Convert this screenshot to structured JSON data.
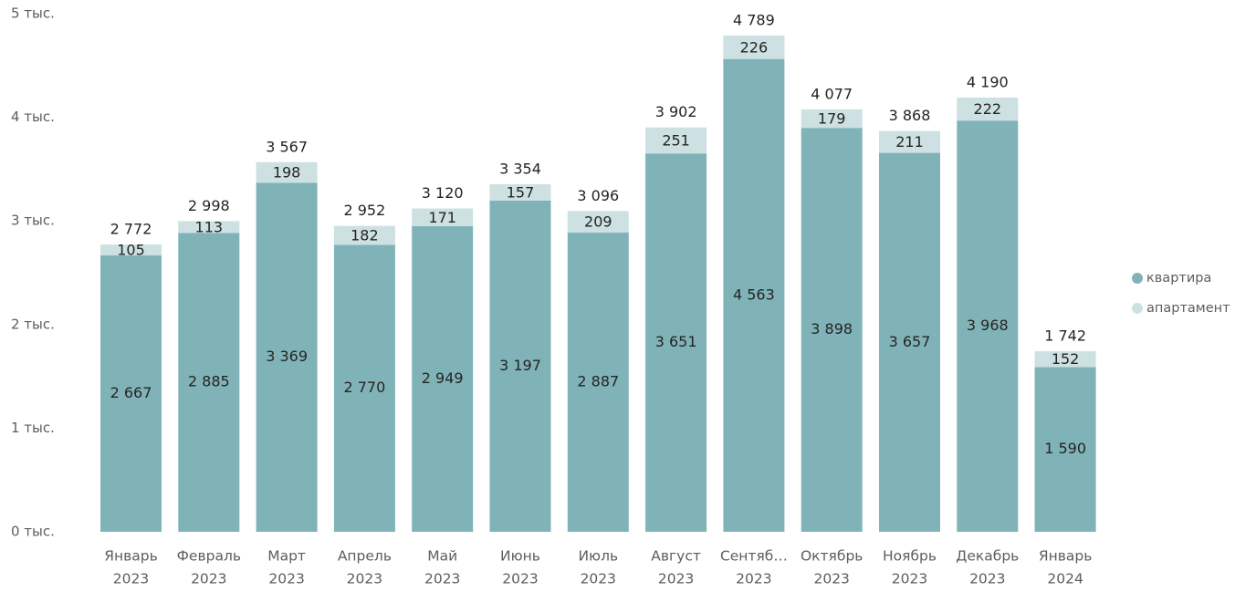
{
  "chart_data": {
    "type": "bar",
    "stacked": true,
    "categories": [
      [
        "Январь",
        "2023"
      ],
      [
        "Февраль",
        "2023"
      ],
      [
        "Март",
        "2023"
      ],
      [
        "Апрель",
        "2023"
      ],
      [
        "Май",
        "2023"
      ],
      [
        "Июнь",
        "2023"
      ],
      [
        "Июль",
        "2023"
      ],
      [
        "Август",
        "2023"
      ],
      [
        "Сентяб…",
        "2023"
      ],
      [
        "Октябрь",
        "2023"
      ],
      [
        "Ноябрь",
        "2023"
      ],
      [
        "Декабрь",
        "2023"
      ],
      [
        "Январь",
        "2024"
      ]
    ],
    "series": [
      {
        "name": "квартира",
        "color": "#80b3b8",
        "values": [
          2667,
          2885,
          3369,
          2770,
          2949,
          3197,
          2887,
          3651,
          4563,
          3898,
          3657,
          3968,
          1590
        ],
        "labels": [
          "2 667",
          "2 885",
          "3 369",
          "2 770",
          "2 949",
          "3 197",
          "2 887",
          "3 651",
          "4 563",
          "3 898",
          "3 657",
          "3 968",
          "1 590"
        ]
      },
      {
        "name": "апартамент",
        "color": "#cde0e2",
        "values": [
          105,
          113,
          198,
          182,
          171,
          157,
          209,
          251,
          226,
          179,
          211,
          222,
          152
        ],
        "labels": [
          "105",
          "113",
          "198",
          "182",
          "171",
          "157",
          "209",
          "251",
          "226",
          "179",
          "211",
          "222",
          "152"
        ]
      }
    ],
    "totals": [
      2772,
      2998,
      3567,
      2952,
      3120,
      3354,
      3096,
      3902,
      4789,
      4077,
      3868,
      4190,
      1742
    ],
    "total_labels": [
      "2 772",
      "2 998",
      "3 567",
      "2 952",
      "3 120",
      "3 354",
      "3 096",
      "3 902",
      "4 789",
      "4 077",
      "3 868",
      "4 190",
      "1 742"
    ],
    "yticks": [
      0,
      1000,
      2000,
      3000,
      4000,
      5000
    ],
    "ytick_labels": [
      "0 тыс.",
      "1 тыс.",
      "2 тыс.",
      "3 тыс.",
      "4 тыс.",
      "5 тыс."
    ],
    "ylim": [
      0,
      5100
    ],
    "legend_position": "right",
    "grid": false
  }
}
